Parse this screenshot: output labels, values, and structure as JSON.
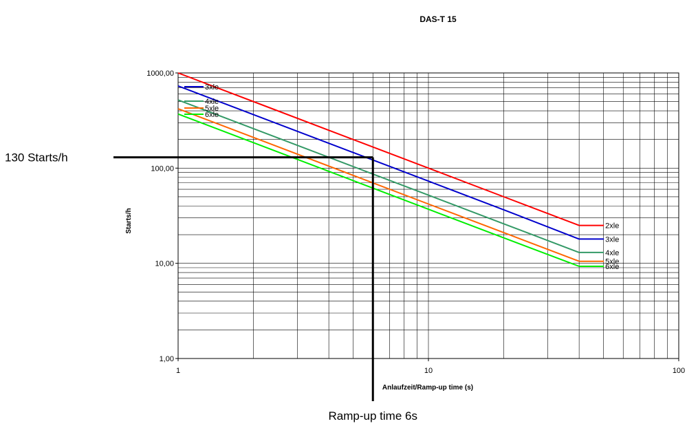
{
  "chart_data": {
    "type": "line",
    "title": "DAS-T 15",
    "xlabel": "Anlaufzeit/Ramp-up time (s)",
    "ylabel": "Starts/h",
    "x_scale": "log",
    "y_scale": "log",
    "xlim": [
      1,
      100
    ],
    "ylim": [
      1,
      1000
    ],
    "grid": true,
    "x_tick_labels": [
      "1",
      "10",
      "100"
    ],
    "y_tick_labels": [
      "1,00",
      "10,00",
      "100,00",
      "1000,00"
    ],
    "series": [
      {
        "name": "2xle",
        "color": "#ff0000",
        "x": [
          1,
          5,
          10,
          20,
          40
        ],
        "y": [
          1000,
          200,
          100,
          50,
          25
        ],
        "legend_label": "2xle"
      },
      {
        "name": "3xle",
        "color": "#0000cc",
        "x": [
          1,
          5,
          10,
          20,
          40
        ],
        "y": [
          730,
          146,
          73,
          36.5,
          18
        ],
        "legend_label": "3xle"
      },
      {
        "name": "4xle",
        "color": "#339966",
        "x": [
          1,
          5,
          10,
          20,
          40
        ],
        "y": [
          520,
          104,
          52,
          26,
          13
        ],
        "legend_label": "4xle"
      },
      {
        "name": "5xle",
        "color": "#ff6600",
        "x": [
          1,
          5,
          10,
          20,
          40
        ],
        "y": [
          420,
          84,
          42,
          21,
          10.5
        ],
        "legend_label": "5xle"
      },
      {
        "name": "6xle",
        "color": "#00ee00",
        "x": [
          1,
          5,
          10,
          20,
          40
        ],
        "y": [
          370,
          74,
          37,
          18.5,
          9.3
        ],
        "legend_label": "6xle"
      }
    ],
    "annotations": [
      {
        "text": "130 Starts/h",
        "y_value": 130
      },
      {
        "text": "Ramp-up time 6s",
        "x_value": 6
      }
    ]
  }
}
